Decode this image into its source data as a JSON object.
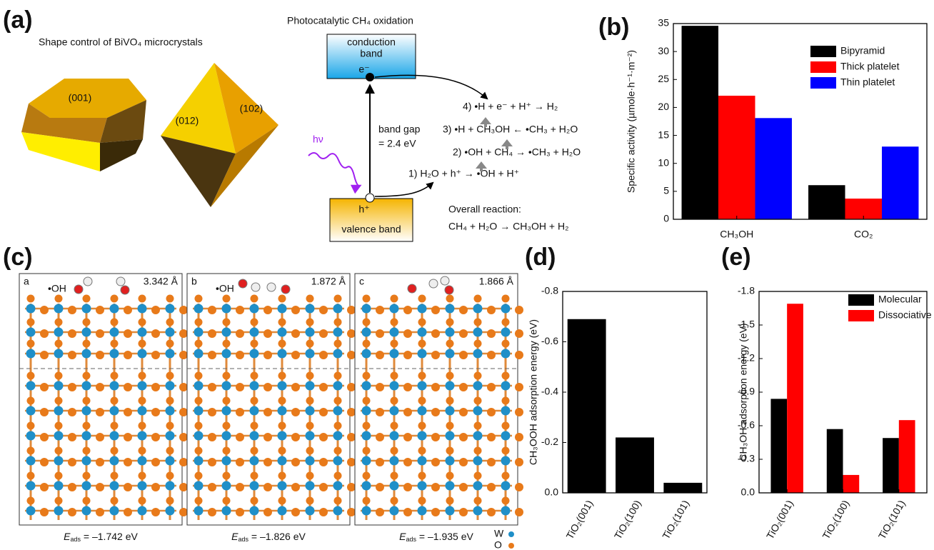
{
  "panel_a": {
    "label": "(a)",
    "shape_title": "Shape control of BiVO₄ microcrystals",
    "facets": [
      "(001)",
      "(012)",
      "(102)"
    ],
    "scheme_title": "Photocatalytic CH₄ oxidation",
    "conduction_band": [
      "conduction",
      "band"
    ],
    "electron": "e⁻",
    "band_gap": [
      "band gap",
      "= 2.4 eV"
    ],
    "light": "hν",
    "hole": "h⁺",
    "valence_band": "valence band",
    "reactions": [
      "4) •H + e⁻ + H⁺ → H₂",
      "3) •H + CH₃OH ← •CH₃ + H₂O",
      "2) •OH + CH₄ → •CH₃ + H₂O",
      "1) H₂O + h⁺ → •OH + H⁺"
    ],
    "overall": [
      "Overall reaction:",
      "CH₄ + H₂O → CH₃OH + H₂"
    ]
  },
  "panel_c": {
    "label": "(c)",
    "subpanels": [
      {
        "letter": "a",
        "species": "•OH",
        "distance": "3.342 Å",
        "energy_symbol": "E",
        "energy_subscript": "ads",
        "energy_value": " = –1.742 eV"
      },
      {
        "letter": "b",
        "species": "•OH",
        "distance": "1.872 Å",
        "energy_symbol": "E",
        "energy_subscript": "ads",
        "energy_value": " = –1.826 eV"
      },
      {
        "letter": "c",
        "distance": "1.866 Å",
        "energy_symbol": "E",
        "energy_subscript": "ads",
        "energy_value": " = –1.935 eV"
      }
    ],
    "legend": [
      "W",
      "O"
    ]
  },
  "chart_data": [
    {
      "type": "bar",
      "panel_label": "(b)",
      "y_label": "Specific activity (µmole·h⁻¹·m⁻²)",
      "categories": [
        "CH₃OH",
        "CO₂"
      ],
      "series": [
        {
          "name": "Bipyramid",
          "color": "#000000",
          "values": [
            34.6,
            6.1
          ]
        },
        {
          "name": "Thick platelet",
          "color": "#ff0000",
          "values": [
            22.1,
            3.7
          ]
        },
        {
          "name": "Thin platelet",
          "color": "#0000ff",
          "values": [
            18.1,
            13.0
          ]
        }
      ],
      "ylim": [
        0,
        35
      ],
      "yticks": [
        0,
        5,
        10,
        15,
        20,
        25,
        30,
        35
      ],
      "legend": "top-right"
    },
    {
      "type": "bar",
      "panel_label": "(d)",
      "y_label": "CH₃OOH adsorption energy (eV)",
      "categories": [
        "TiO₂(001)",
        "TiO₂(100)",
        "TiO₂(101)"
      ],
      "values": [
        -0.69,
        -0.22,
        -0.04
      ],
      "color": "#000000",
      "ylim": [
        0,
        -0.8
      ],
      "yticks": [
        {
          "value": 0,
          "label": "0.0"
        },
        -0.2,
        -0.4,
        -0.6,
        -0.8
      ]
    },
    {
      "type": "bar",
      "panel_label": "(e)",
      "y_label": "CH₃OH adsorption energy (eV)",
      "categories": [
        "TiO₂(001)",
        "TiO₂(100)",
        "TiO₂(101)"
      ],
      "series": [
        {
          "name": "Molecular",
          "color": "#000000",
          "values": [
            -0.84,
            -0.57,
            -0.49
          ]
        },
        {
          "name": "Dissociative",
          "color": "#ff0000",
          "values": [
            -1.69,
            -0.16,
            -0.65
          ]
        }
      ],
      "ylim": [
        0,
        -1.8
      ],
      "yticks": [
        {
          "value": 0,
          "label": "0.0"
        },
        -0.3,
        -0.6,
        -0.9,
        -1.2,
        -1.5,
        -1.8
      ],
      "legend": "top-right"
    }
  ]
}
